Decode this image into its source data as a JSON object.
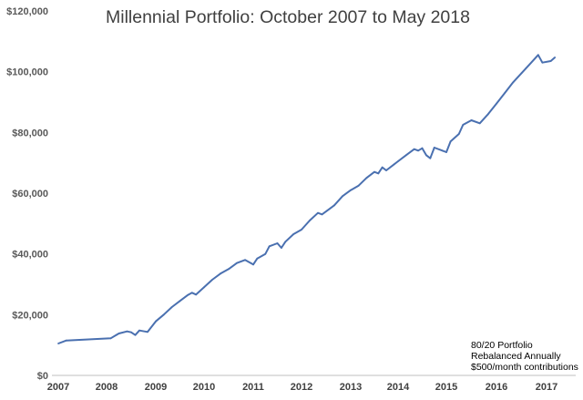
{
  "chart_data": {
    "type": "line",
    "title": "Millennial Portfolio: October 2007 to May 2018",
    "xlabel": "",
    "ylabel": "",
    "x_tick_labels": [
      "2007",
      "2008",
      "2009",
      "2010",
      "2011",
      "2012",
      "2013",
      "2014",
      "2015",
      "2016",
      "2017"
    ],
    "y_tick_labels": [
      "$0",
      "$20,000",
      "$40,000",
      "$60,000",
      "$80,000",
      "$100,000",
      "$120,000"
    ],
    "ylim": [
      0,
      120000
    ],
    "grid": false,
    "legend": false,
    "line_color": "#4a70b0",
    "annotation": [
      "80/20 Portfolio",
      "Rebalanced Annually",
      "$500/month contributions"
    ],
    "series": [
      {
        "points": [
          [
            "2007-10",
            10500
          ],
          [
            "2007-12",
            11500
          ],
          [
            "2008-02",
            12200
          ],
          [
            "2008-04",
            13800
          ],
          [
            "2008-06",
            14500
          ],
          [
            "2008-07",
            14200
          ],
          [
            "2008-08",
            13300
          ],
          [
            "2008-09",
            14800
          ],
          [
            "2008-11",
            14300
          ],
          [
            "2009-01",
            17800
          ],
          [
            "2009-03",
            20000
          ],
          [
            "2009-05",
            22500
          ],
          [
            "2009-07",
            24500
          ],
          [
            "2009-09",
            26500
          ],
          [
            "2009-10",
            27200
          ],
          [
            "2009-11",
            26600
          ],
          [
            "2010-01",
            29000
          ],
          [
            "2010-03",
            31500
          ],
          [
            "2010-05",
            33500
          ],
          [
            "2010-07",
            35000
          ],
          [
            "2010-09",
            37000
          ],
          [
            "2010-11",
            38000
          ],
          [
            "2011-01",
            36500
          ],
          [
            "2011-02",
            38500
          ],
          [
            "2011-04",
            40000
          ],
          [
            "2011-05",
            42500
          ],
          [
            "2011-07",
            43500
          ],
          [
            "2011-08",
            42000
          ],
          [
            "2011-09",
            44000
          ],
          [
            "2011-11",
            46500
          ],
          [
            "2012-01",
            48000
          ],
          [
            "2012-03",
            51000
          ],
          [
            "2012-05",
            53500
          ],
          [
            "2012-06",
            53000
          ],
          [
            "2012-08",
            55000
          ],
          [
            "2012-09",
            56000
          ],
          [
            "2012-11",
            59000
          ],
          [
            "2013-01",
            61000
          ],
          [
            "2013-03",
            62500
          ],
          [
            "2013-05",
            65000
          ],
          [
            "2013-07",
            67000
          ],
          [
            "2013-08",
            66500
          ],
          [
            "2013-09",
            68500
          ],
          [
            "2013-10",
            67500
          ],
          [
            "2013-12",
            69500
          ],
          [
            "2014-01",
            70500
          ],
          [
            "2014-03",
            72500
          ],
          [
            "2014-05",
            74500
          ],
          [
            "2014-06",
            74000
          ],
          [
            "2014-07",
            74800
          ],
          [
            "2014-08",
            72500
          ],
          [
            "2014-09",
            71500
          ],
          [
            "2014-10",
            75000
          ],
          [
            "2014-12",
            74000
          ],
          [
            "2015-01",
            73500
          ],
          [
            "2015-02",
            77000
          ],
          [
            "2015-04",
            79500
          ],
          [
            "2015-05",
            82500
          ],
          [
            "2015-07",
            84000
          ],
          [
            "2015-09",
            83000
          ],
          [
            "2015-11",
            86000
          ],
          [
            "2016-01",
            89500
          ],
          [
            "2016-03",
            93000
          ],
          [
            "2016-05",
            96500
          ],
          [
            "2016-07",
            99500
          ],
          [
            "2016-08",
            101000
          ],
          [
            "2016-09",
            102500
          ],
          [
            "2016-11",
            105500
          ],
          [
            "2016-12",
            103000
          ],
          [
            "2017-02",
            103500
          ],
          [
            "2017-03",
            104700
          ]
        ]
      }
    ]
  }
}
